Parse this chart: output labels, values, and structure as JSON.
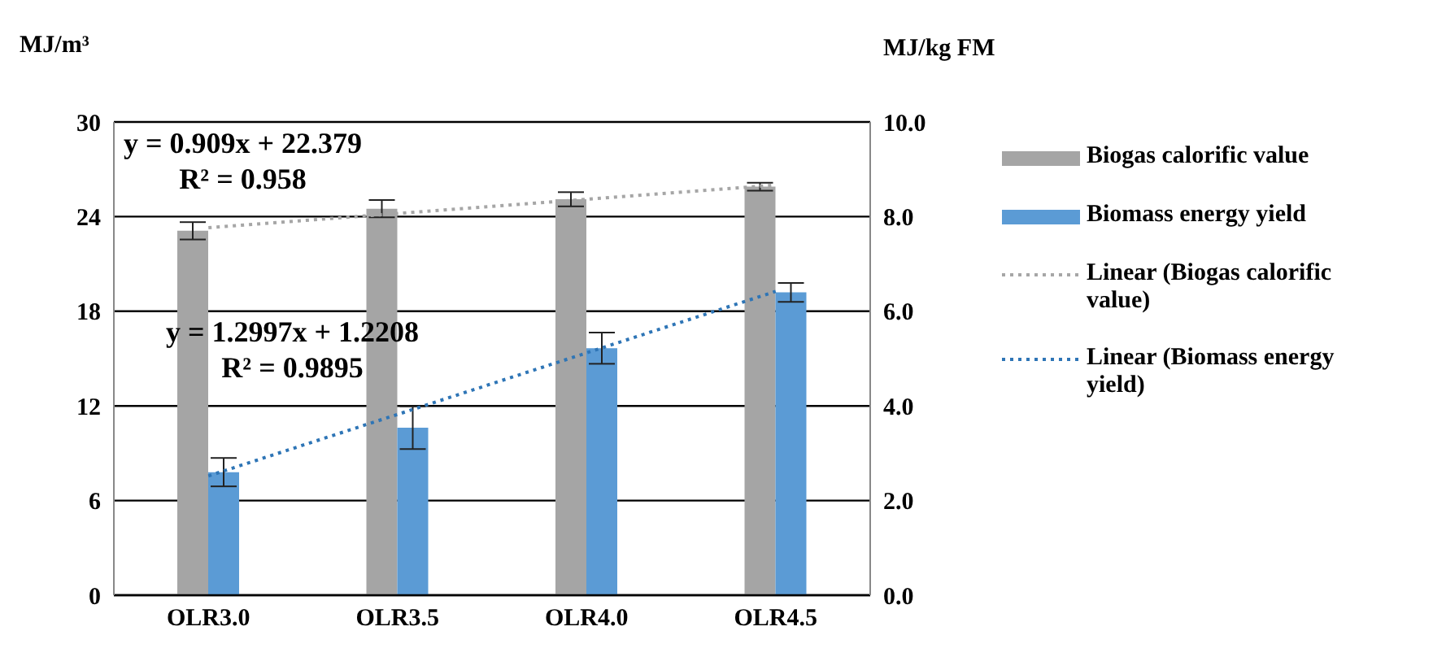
{
  "chart_data": {
    "type": "bar",
    "ylabel": "MJ/m³",
    "y2label": "MJ/kg FM",
    "categories": [
      "OLR3.0",
      "OLR3.5",
      "OLR4.0",
      "OLR4.5"
    ],
    "series": [
      {
        "name": "Biogas calorific value",
        "color": "#a5a5a5",
        "values": [
          23.1,
          24.5,
          25.1,
          25.9
        ],
        "errors": [
          0.55,
          0.55,
          0.45,
          0.25
        ]
      },
      {
        "name": "Biomass energy yield",
        "axis": "y2",
        "color": "#5b9bd5",
        "values": [
          2.6,
          3.54,
          5.22,
          6.4
        ],
        "errors": [
          0.3,
          0.45,
          0.33,
          0.2
        ]
      },
      {
        "name": "Linear (Biogas calorific value)",
        "type": "line",
        "color": "#a6a6a6",
        "line_style": "dotted",
        "marker": "none",
        "x": [
          "OLR3.0",
          "OLR3.5",
          "OLR4.0",
          "OLR4.5"
        ],
        "values": [
          23.3,
          24.2,
          25.1,
          26.0
        ]
      },
      {
        "name": "Linear (Biomass energy yield)",
        "type": "line",
        "axis": "y2",
        "color": "#2e75b6",
        "line_style": "dotted",
        "marker": "none",
        "x": [
          "OLR3.0",
          "OLR3.5",
          "OLR4.0",
          "OLR4.5"
        ],
        "values": [
          2.52,
          3.82,
          5.12,
          6.42
        ]
      }
    ],
    "ylim": [
      0,
      30
    ],
    "yticks": [
      0,
      6,
      12,
      18,
      24,
      30
    ],
    "y2lim": [
      0,
      10
    ],
    "y2ticks": [
      {
        "value": 0,
        "label": "0.0"
      },
      {
        "value": 2,
        "label": "2.0"
      },
      {
        "value": 4,
        "label": "4.0"
      },
      {
        "value": 6,
        "label": "6.0"
      },
      {
        "value": 8,
        "label": "8.0"
      },
      {
        "value": 10,
        "label": "10.0"
      }
    ],
    "grid": "y",
    "legend": "right",
    "annotations": [
      "y = 0.909x + 22.379\nR² = 0.958",
      "y = 1.2997x + 1.2208\nR² = 0.9895"
    ]
  }
}
